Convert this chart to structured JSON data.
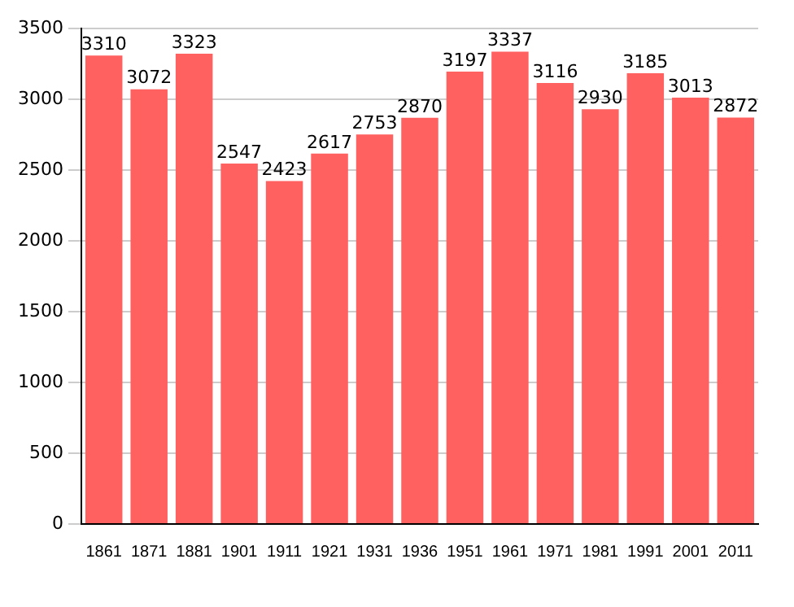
{
  "chart_data": {
    "type": "bar",
    "categories": [
      "1861",
      "1871",
      "1881",
      "1901",
      "1911",
      "1921",
      "1931",
      "1936",
      "1951",
      "1961",
      "1971",
      "1981",
      "1991",
      "2001",
      "2011"
    ],
    "values": [
      3310,
      3072,
      3323,
      2547,
      2423,
      2617,
      2753,
      2870,
      3197,
      3337,
      3116,
      2930,
      3185,
      3013,
      2872
    ],
    "color": "#ff6060",
    "ylim": [
      0,
      3500
    ],
    "yticks": [
      0,
      500,
      1000,
      1500,
      2000,
      2500,
      3000,
      3500
    ],
    "grid": "y",
    "data_labels": true,
    "legend": false
  }
}
